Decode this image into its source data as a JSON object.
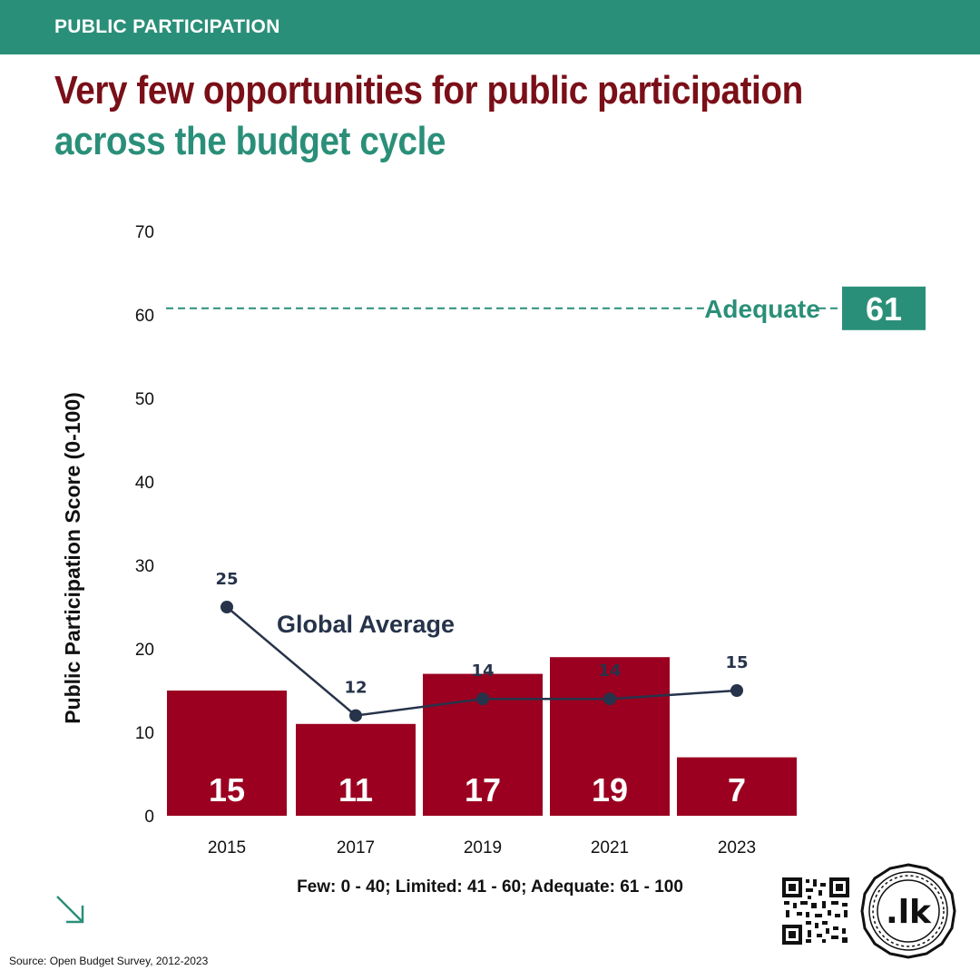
{
  "header": {
    "section": "PUBLIC PARTICIPATION"
  },
  "headline": {
    "part1": "Very few opportunities for public participation",
    "part2": "across the budget cycle"
  },
  "footer": {
    "source": "Source: Open Budget Survey, 2012-2023",
    "logo_text": ".lk"
  },
  "colors": {
    "brand_green": "#2a8f78",
    "bar_red": "#9b0020",
    "title_red": "#7a0f18",
    "line_navy": "#26334a"
  },
  "icons": [
    "arrow-down-right-icon",
    "qr-code-icon",
    "lk-logo-icon"
  ],
  "chart_data": {
    "type": "bar",
    "categories": [
      "2015",
      "2017",
      "2019",
      "2021",
      "2023"
    ],
    "series": [
      {
        "name": "",
        "type": "bar",
        "values": [
          15,
          11,
          17,
          19,
          7
        ]
      },
      {
        "name": "Global Average",
        "type": "line",
        "values": [
          25,
          12,
          14,
          14,
          15
        ]
      }
    ],
    "ylabel": "Public Participation Score (0-100)",
    "xlabel": "Few: 0 - 40; Limited: 41 - 60; Adequate: 61 - 100",
    "ylim": [
      0,
      70
    ],
    "yticks": [
      "0",
      "10",
      "20",
      "30",
      "40",
      "50",
      "60",
      "70"
    ],
    "reference_line": {
      "label": "Adequate",
      "value": 61,
      "value_label": "61"
    },
    "bar_labels": [
      "15",
      "11",
      "17",
      "19",
      "7"
    ],
    "line_labels": [
      "25",
      "12",
      "14",
      "14",
      "15"
    ],
    "grid": false
  }
}
